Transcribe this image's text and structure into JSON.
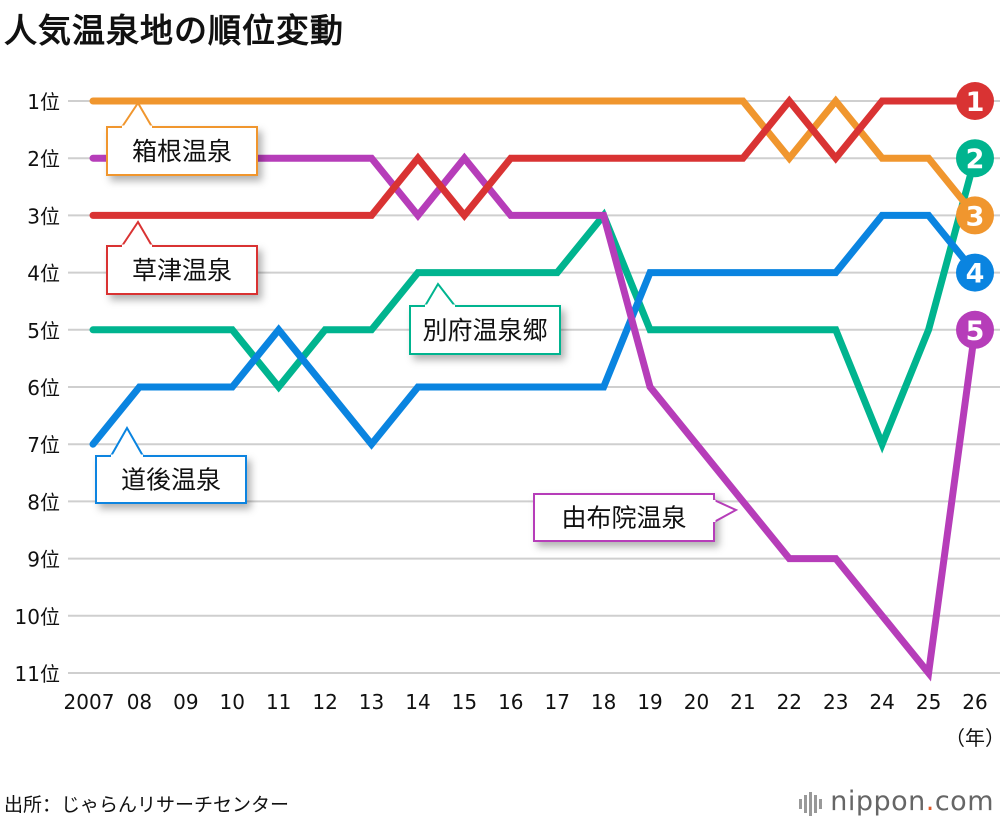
{
  "title": "人気温泉地の順位変動",
  "source": "出所：じゃらんリサーチセンター",
  "logo": {
    "name": "nippon",
    "dot": ".",
    "tld": "com"
  },
  "chart_data": {
    "type": "line",
    "title": "人気温泉地の順位変動",
    "x": [
      "2007",
      "08",
      "09",
      "10",
      "11",
      "12",
      "13",
      "14",
      "15",
      "16",
      "17",
      "18",
      "19",
      "20",
      "21",
      "22",
      "23",
      "24",
      "25",
      "26"
    ],
    "x_unit": "（年）",
    "y_ticks": [
      "1位",
      "2位",
      "3位",
      "4位",
      "5位",
      "6位",
      "7位",
      "8位",
      "9位",
      "10位",
      "11位"
    ],
    "ylim": [
      1,
      11
    ],
    "y_inverted": true,
    "grid": true,
    "series": [
      {
        "name": "箱根温泉",
        "color": "#f0962e",
        "final_rank": "3",
        "values": [
          1,
          1,
          1,
          1,
          1,
          1,
          1,
          1,
          1,
          1,
          1,
          1,
          1,
          1,
          1,
          2,
          1,
          2,
          2,
          3
        ]
      },
      {
        "name": "草津温泉",
        "color": "#d93333",
        "final_rank": "1",
        "values": [
          3,
          3,
          3,
          3,
          3,
          3,
          3,
          2,
          3,
          2,
          2,
          2,
          2,
          2,
          2,
          1,
          2,
          1,
          1,
          1
        ]
      },
      {
        "name": "別府温泉郷",
        "color": "#00b48f",
        "final_rank": "2",
        "values": [
          5,
          5,
          5,
          5,
          6,
          5,
          5,
          4,
          4,
          4,
          4,
          3,
          5,
          5,
          5,
          5,
          5,
          7,
          5,
          2
        ]
      },
      {
        "name": "道後温泉",
        "color": "#0a84e0",
        "final_rank": "4",
        "values": [
          7,
          6,
          6,
          6,
          5,
          6,
          7,
          6,
          6,
          6,
          6,
          6,
          4,
          4,
          4,
          4,
          4,
          3,
          3,
          4
        ]
      },
      {
        "name": "由布院温泉",
        "color": "#b63db9",
        "final_rank": "5",
        "values": [
          2,
          2,
          2,
          2,
          2,
          2,
          2,
          3,
          2,
          3,
          3,
          3,
          6,
          7,
          8,
          9,
          9,
          10,
          11,
          5
        ]
      }
    ]
  }
}
